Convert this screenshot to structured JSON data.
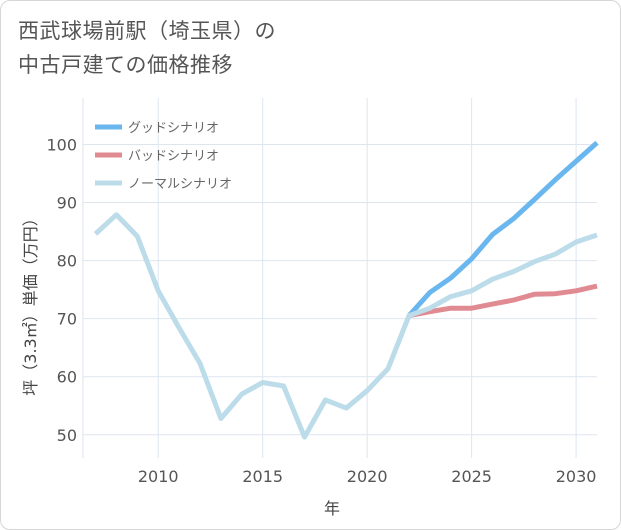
{
  "chart_data": {
    "type": "line",
    "title_lines": [
      "西武球場前駅（埼玉県）の",
      "中古戸建ての価格推移"
    ],
    "xlabel": "年",
    "ylabel": "坪（3.3㎡）単価（万円）",
    "xlim": [
      2006.4,
      2031
    ],
    "ylim": [
      46,
      108
    ],
    "xticks": [
      2010,
      2015,
      2020,
      2025,
      2030
    ],
    "yticks": [
      50,
      60,
      70,
      80,
      90,
      100
    ],
    "grid": true,
    "legend_position": "top-left",
    "series": [
      {
        "name": "グッドシナリオ",
        "color": "#6ab6ee",
        "x": [
          2022,
          2023,
          2024,
          2025,
          2026,
          2027,
          2028,
          2029,
          2030,
          2031
        ],
        "values": [
          70.5,
          74.5,
          77,
          80.3,
          84.5,
          87.2,
          90.5,
          93.9,
          97.1,
          100.3
        ]
      },
      {
        "name": "バッドシナリオ",
        "color": "#e08b92",
        "x": [
          2022,
          2023,
          2024,
          2025,
          2026,
          2027,
          2028,
          2029,
          2030,
          2031
        ],
        "values": [
          70.5,
          71.2,
          71.8,
          71.8,
          72.5,
          73.2,
          74.2,
          74.3,
          74.8,
          75.6
        ]
      },
      {
        "name": "ノーマルシナリオ",
        "color": "#bcdcea",
        "x": [
          2007,
          2008,
          2009,
          2010,
          2011,
          2012,
          2013,
          2014,
          2015,
          2016,
          2017,
          2018,
          2019,
          2020,
          2021,
          2022,
          2023,
          2024,
          2025,
          2026,
          2027,
          2028,
          2029,
          2030,
          2031
        ],
        "values": [
          84.6,
          87.9,
          84.2,
          74.8,
          68.4,
          62.3,
          52.8,
          57,
          59,
          58.4,
          49.6,
          56,
          54.6,
          57.6,
          61.4,
          70.5,
          71.8,
          73.8,
          74.8,
          76.8,
          78.1,
          79.8,
          81.1,
          83.2,
          84.4
        ]
      }
    ]
  }
}
